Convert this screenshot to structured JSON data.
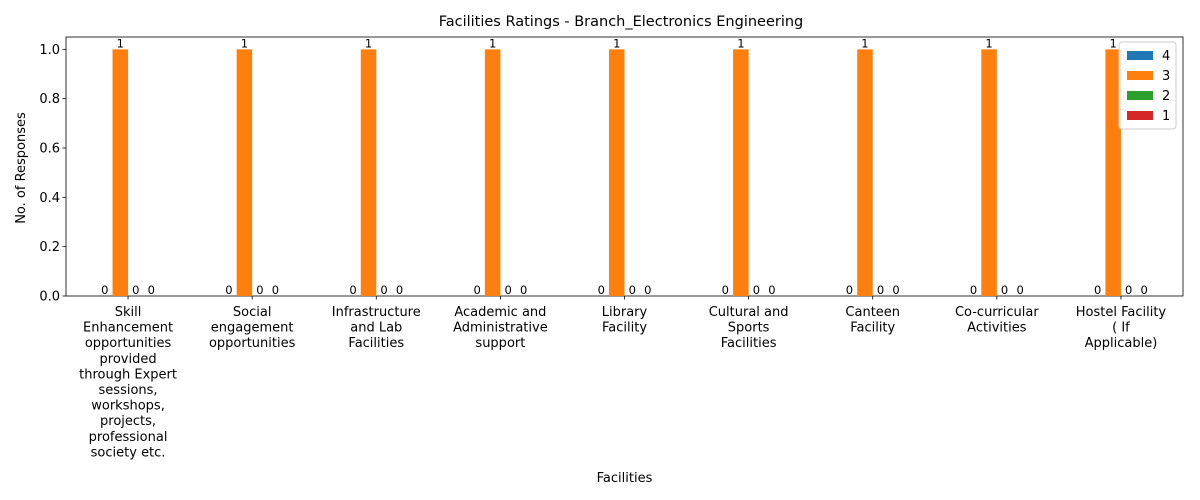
{
  "chart_data": {
    "type": "bar",
    "title": "Facilities Ratings - Branch_Electronics Engineering",
    "xlabel": "Facilities",
    "ylabel": "No. of Responses",
    "ylim": [
      0,
      1.05
    ],
    "yticks": [
      "0.0",
      "0.2",
      "0.4",
      "0.6",
      "0.8",
      "1.0"
    ],
    "grid": false,
    "legend_position": "top-right",
    "categories": [
      [
        "Skill",
        "Enhancement",
        "opportunities",
        "provided",
        "through Expert",
        "sessions,",
        "workshops,",
        "projects,",
        "professional",
        "society etc."
      ],
      [
        "Social",
        "engagement",
        "opportunities"
      ],
      [
        "Infrastructure",
        "and Lab",
        "Facilities"
      ],
      [
        "Academic and",
        "Administrative",
        "support"
      ],
      [
        "Library",
        "Facility"
      ],
      [
        "Cultural and",
        "Sports",
        "Facilities"
      ],
      [
        "Canteen",
        "Facility"
      ],
      [
        "Co-curricular",
        "Activities"
      ],
      [
        "Hostel Facility",
        "( If",
        "Applicable)"
      ]
    ],
    "series": [
      {
        "name": "4",
        "color": "#1f77b4",
        "values": [
          0,
          0,
          0,
          0,
          0,
          0,
          0,
          0,
          0
        ]
      },
      {
        "name": "3",
        "color": "#ff7f0e",
        "values": [
          1,
          1,
          1,
          1,
          1,
          1,
          1,
          1,
          1
        ]
      },
      {
        "name": "2",
        "color": "#2ca02c",
        "values": [
          0,
          0,
          0,
          0,
          0,
          0,
          0,
          0,
          0
        ]
      },
      {
        "name": "1",
        "color": "#d62728",
        "values": [
          0,
          0,
          0,
          0,
          0,
          0,
          0,
          0,
          0
        ]
      }
    ]
  }
}
